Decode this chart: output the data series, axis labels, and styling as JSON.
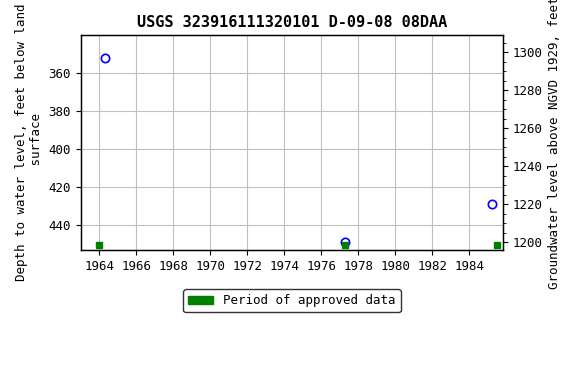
{
  "title": "USGS 323916111320101 D-09-08 08DAA",
  "points": [
    {
      "x": 1964.3,
      "y_depth": 352.0
    },
    {
      "x": 1977.3,
      "y_depth": 449.0
    },
    {
      "x": 1985.2,
      "y_depth": 429.0
    }
  ],
  "green_squares": [
    {
      "x": 1964.0,
      "y_depth": 450.5
    },
    {
      "x": 1977.3,
      "y_depth": 450.5
    },
    {
      "x": 1985.5,
      "y_depth": 450.5
    }
  ],
  "ylim_depth": [
    453,
    340
  ],
  "xlim": [
    1963,
    1985.8
  ],
  "xticks": [
    1964,
    1966,
    1968,
    1970,
    1972,
    1974,
    1976,
    1978,
    1980,
    1982,
    1984
  ],
  "yticks_left": [
    360,
    380,
    400,
    420,
    440
  ],
  "yticks_right": [
    1200,
    1220,
    1240,
    1260,
    1280,
    1300
  ],
  "ylabel_left": "Depth to water level, feet below land\n surface",
  "ylabel_right": "Groundwater level above NGVD 1929, feet",
  "point_color": "#0000ff",
  "square_color": "#008000",
  "background_color": "#ffffff",
  "grid_color": "#c0c0c0",
  "land_surface_elevation": 1649,
  "title_fontsize": 11,
  "axis_fontsize": 9,
  "tick_fontsize": 9,
  "legend_label": "Period of approved data"
}
